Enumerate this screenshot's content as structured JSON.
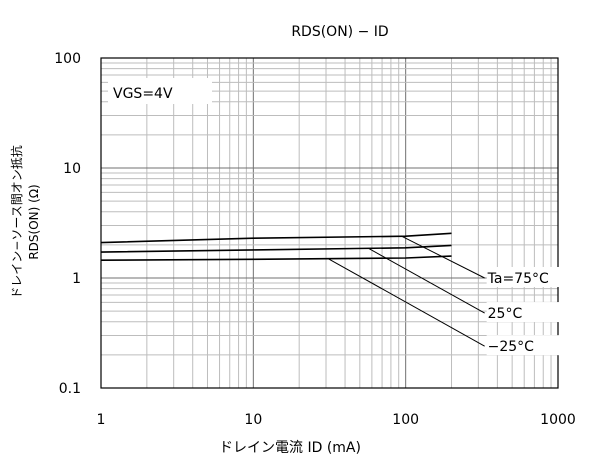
{
  "chart_data": {
    "type": "line",
    "title": "RDS(ON) − ID",
    "xlabel": "ドレイン電流  ID (mA)",
    "ylabel_line1": "ドレイン−ソース間オン抵抗",
    "ylabel_line2": "RDS(ON) (Ω)",
    "x_scale": "log",
    "y_scale": "log",
    "xlim": [
      1,
      1000
    ],
    "ylim": [
      0.1,
      100
    ],
    "x_ticks": [
      {
        "value": 1,
        "label": "1"
      },
      {
        "value": 10,
        "label": "10"
      },
      {
        "value": 100,
        "label": "100"
      },
      {
        "value": 1000,
        "label": "1000"
      }
    ],
    "y_ticks": [
      {
        "value": 0.1,
        "label": "0.1"
      },
      {
        "value": 1,
        "label": "1"
      },
      {
        "value": 10,
        "label": "10"
      },
      {
        "value": 100,
        "label": "100"
      }
    ],
    "grid": true,
    "condition_label": "VGS=4V",
    "series": [
      {
        "name": "Ta=75°C",
        "x": [
          1,
          10,
          100,
          200
        ],
        "y": [
          2.1,
          2.3,
          2.4,
          2.55
        ]
      },
      {
        "name": "25°C",
        "x": [
          1,
          10,
          100,
          200
        ],
        "y": [
          1.72,
          1.8,
          1.88,
          1.98
        ]
      },
      {
        "name": "−25°C",
        "x": [
          1,
          10,
          100,
          200
        ],
        "y": [
          1.45,
          1.48,
          1.52,
          1.58
        ]
      }
    ],
    "annotations": [
      {
        "label": "Ta=75°C",
        "from": [
          93,
          2.42
        ],
        "to": [
          330,
          1.0
        ]
      },
      {
        "label": "25°C",
        "from": [
          57,
          1.86
        ],
        "to": [
          330,
          0.48
        ]
      },
      {
        "label": "−25°C",
        "from": [
          31,
          1.5
        ],
        "to": [
          330,
          0.24
        ]
      }
    ]
  }
}
